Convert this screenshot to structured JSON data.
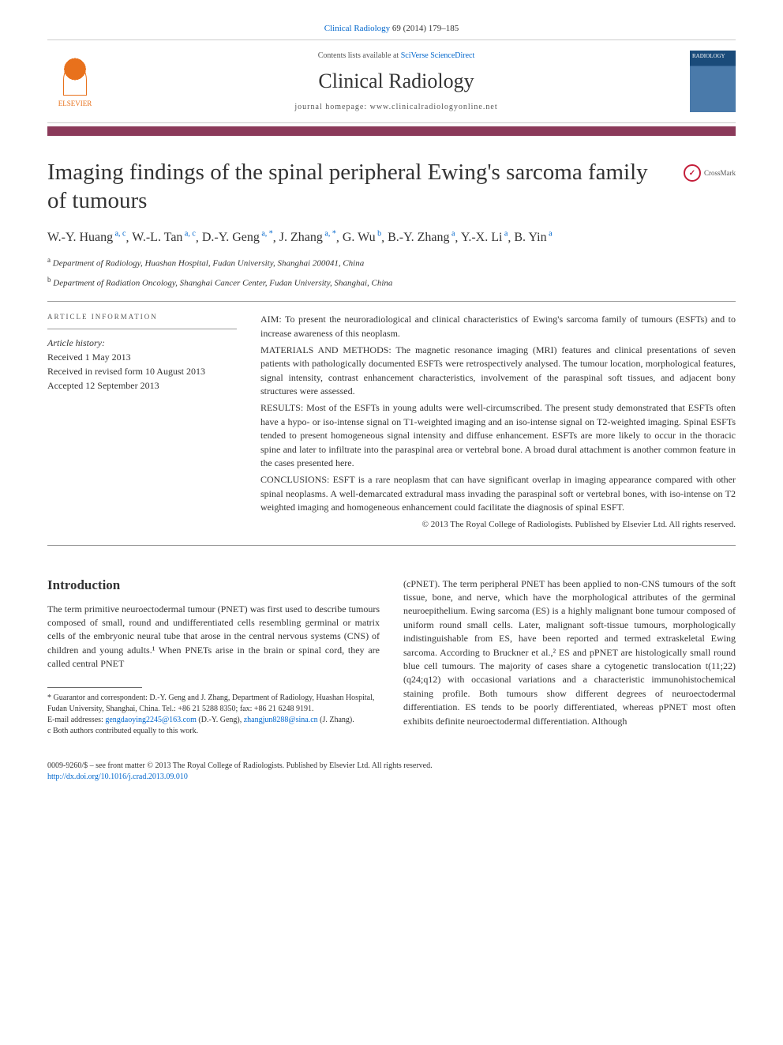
{
  "citation": {
    "journal_link": "Clinical Radiology",
    "vol_pages": "69 (2014) 179–185"
  },
  "masthead": {
    "contents_prefix": "Contents lists available at ",
    "contents_link": "SciVerse ScienceDirect",
    "journal_name": "Clinical Radiology",
    "homepage_prefix": "journal homepage: ",
    "homepage_url": "www.clinicalradiologyonline.net",
    "publisher_name": "ELSEVIER",
    "cover_label": "RADIOLOGY"
  },
  "crossmark_label": "CrossMark",
  "article": {
    "title": "Imaging findings of the spinal peripheral Ewing's sarcoma family of tumours",
    "authors_html": "W.-Y. Huang",
    "authors": [
      {
        "name": "W.-Y. Huang",
        "sup": "a, c"
      },
      {
        "name": "W.-L. Tan",
        "sup": "a, c"
      },
      {
        "name": "D.-Y. Geng",
        "sup": "a, *"
      },
      {
        "name": "J. Zhang",
        "sup": "a, *"
      },
      {
        "name": "G. Wu",
        "sup": "b"
      },
      {
        "name": "B.-Y. Zhang",
        "sup": "a"
      },
      {
        "name": "Y.-X. Li",
        "sup": "a"
      },
      {
        "name": "B. Yin",
        "sup": "a"
      }
    ],
    "affiliations": [
      {
        "sup": "a",
        "text": "Department of Radiology, Huashan Hospital, Fudan University, Shanghai 200041, China"
      },
      {
        "sup": "b",
        "text": "Department of Radiation Oncology, Shanghai Cancer Center, Fudan University, Shanghai, China"
      }
    ]
  },
  "article_info": {
    "label": "ARTICLE INFORMATION",
    "history_label": "Article history:",
    "received": "Received 1 May 2013",
    "revised": "Received in revised form 10 August 2013",
    "accepted": "Accepted 12 September 2013"
  },
  "abstract": {
    "aim": "AIM: To present the neuroradiological and clinical characteristics of Ewing's sarcoma family of tumours (ESFTs) and to increase awareness of this neoplasm.",
    "methods": "MATERIALS AND METHODS: The magnetic resonance imaging (MRI) features and clinical presentations of seven patients with pathologically documented ESFTs were retrospectively analysed. The tumour location, morphological features, signal intensity, contrast enhancement characteristics, involvement of the paraspinal soft tissues, and adjacent bony structures were assessed.",
    "results": "RESULTS: Most of the ESFTs in young adults were well-circumscribed. The present study demonstrated that ESFTs often have a hypo- or iso-intense signal on T1-weighted imaging and an iso-intense signal on T2-weighted imaging. Spinal ESFTs tended to present homogeneous signal intensity and diffuse enhancement. ESFTs are more likely to occur in the thoracic spine and later to infiltrate into the paraspinal area or vertebral bone. A broad dural attachment is another common feature in the cases presented here.",
    "conclusions": "CONCLUSIONS: ESFT is a rare neoplasm that can have significant overlap in imaging appearance compared with other spinal neoplasms. A well-demarcated extradural mass invading the paraspinal soft or vertebral bones, with iso-intense on T2 weighted imaging and homogeneous enhancement could facilitate the diagnosis of spinal ESFT.",
    "copyright": "© 2013 The Royal College of Radiologists. Published by Elsevier Ltd. All rights reserved."
  },
  "body": {
    "intro_heading": "Introduction",
    "intro_left": "The term primitive neuroectodermal tumour (PNET) was first used to describe tumours composed of small, round and undifferentiated cells resembling germinal or matrix cells of the embryonic neural tube that arose in the central nervous systems (CNS) of children and young adults.¹ When PNETs arise in the brain or spinal cord, they are called central PNET",
    "intro_right": "(cPNET). The term peripheral PNET has been applied to non-CNS tumours of the soft tissue, bone, and nerve, which have the morphological attributes of the germinal neuroepithelium. Ewing sarcoma (ES) is a highly malignant bone tumour composed of uniform round small cells. Later, malignant soft-tissue tumours, morphologically indistinguishable from ES, have been reported and termed extraskeletal Ewing sarcoma. According to Bruckner et al.,² ES and pPNET are histologically small round blue cell tumours. The majority of cases share a cytogenetic translocation t(11;22)(q24;q12) with occasional variations and a characteristic immunohistochemical staining profile. Both tumours show different degrees of neuroectodermal differentiation. ES tends to be poorly differentiated, whereas pPNET most often exhibits definite neuroectodermal differentiation. Although"
  },
  "footnotes": {
    "corr": "* Guarantor and correspondent: D.-Y. Geng and J. Zhang, Department of Radiology, Huashan Hospital, Fudan University, Shanghai, China. Tel.: +86 21 5288 8350; fax: +86 21 6248 9191.",
    "email_label": "E-mail addresses:",
    "email1": "gengdaoying2245@163.com",
    "email1_who": "(D.-Y. Geng),",
    "email2": "zhangjun8288@sina.cn",
    "email2_who": "(J. Zhang).",
    "equal": "c Both authors contributed equally to this work."
  },
  "bottom": {
    "line1": "0009-9260/$ – see front matter © 2013 The Royal College of Radiologists. Published by Elsevier Ltd. All rights reserved.",
    "doi": "http://dx.doi.org/10.1016/j.crad.2013.09.010"
  },
  "colors": {
    "bar": "#8b3a5a",
    "link": "#0066cc",
    "elsevier": "#e8711c",
    "cover_top": "#1a4b7a"
  }
}
